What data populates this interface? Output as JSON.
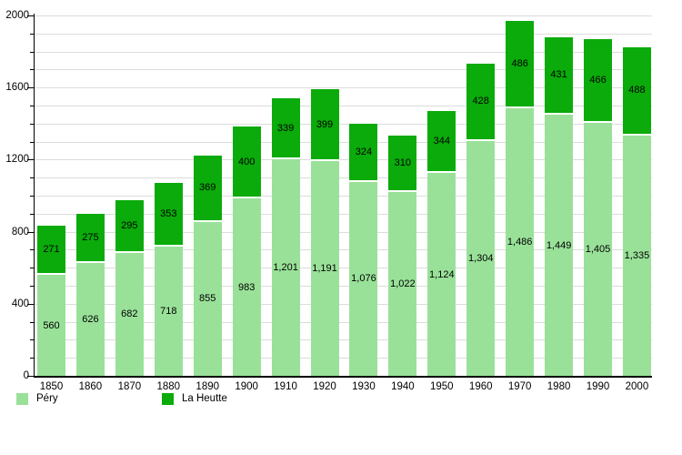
{
  "chart_data": {
    "type": "bar",
    "stacked": true,
    "title": "",
    "categories": [
      "1850",
      "1860",
      "1870",
      "1880",
      "1890",
      "1900",
      "1910",
      "1920",
      "1930",
      "1940",
      "1950",
      "1960",
      "1970",
      "1980",
      "1990",
      "2000"
    ],
    "series": [
      {
        "name": "Péry",
        "color": "#99e199",
        "values": [
          560,
          626,
          682,
          718,
          855,
          983,
          1201,
          1191,
          1076,
          1022,
          1124,
          1304,
          1486,
          1449,
          1405,
          1335
        ],
        "value_labels": [
          "560",
          "626",
          "682",
          "718",
          "855",
          "983",
          "1,201",
          "1,191",
          "1,076",
          "1,022",
          "1,124",
          "1,304",
          "1,486",
          "1,449",
          "1,405",
          "1,335"
        ]
      },
      {
        "name": "La Heutte",
        "color": "#0aab0a",
        "values": [
          271,
          275,
          295,
          353,
          369,
          400,
          339,
          399,
          324,
          310,
          344,
          428,
          486,
          431,
          466,
          488
        ],
        "value_labels": [
          "271",
          "275",
          "295",
          "353",
          "369",
          "400",
          "339",
          "399",
          "324",
          "310",
          "344",
          "428",
          "486",
          "431",
          "466",
          "488"
        ]
      }
    ],
    "ylim": [
      0,
      2000
    ],
    "y_axis": {
      "major_ticks": [
        0,
        400,
        800,
        1200,
        1600,
        2000
      ],
      "major_tick_labels": [
        "0",
        "400",
        "800",
        "1200",
        "1600",
        "2000"
      ],
      "minor_tick_step": 100
    },
    "grid": true,
    "gridline_color": "#dcdcdc",
    "segment_separator_color": "#ffffff",
    "text_color": "#000000",
    "legend_position": "bottom-left",
    "legend": [
      "Péry",
      "La Heutte"
    ]
  }
}
